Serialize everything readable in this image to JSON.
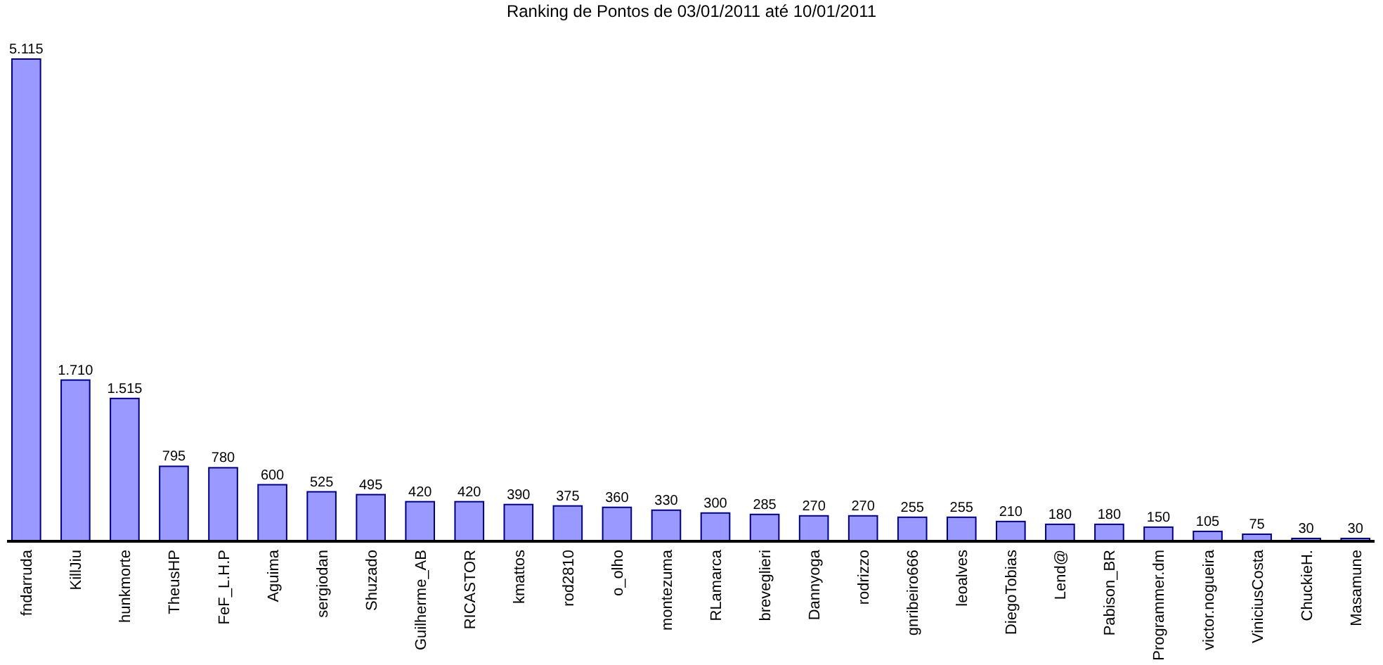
{
  "chart_data": {
    "type": "bar",
    "title": "Ranking de Pontos de 03/01/2011 até 10/01/2011",
    "categories": [
      "fndarruda",
      "KillJiu",
      "hunkmorte",
      "TheusHP",
      "FeF_L.H.P",
      "Aguima",
      "sergiodan",
      "Shuzado",
      "Guilherme_AB",
      "RICASTOR",
      "kmattos",
      "rod2810",
      "o_olho",
      "montezuma",
      "RLamarca",
      "breveglieri",
      "Dannyoga",
      "rodrizzo",
      "gnribeiro666",
      "leoalves",
      "DiegoTobias",
      "Lend@",
      "Pabison_BR",
      "Programmer.dm",
      "victor.nogueira",
      "ViniciusCosta",
      "ChuckieH.",
      "Masamune"
    ],
    "values": [
      5115,
      1710,
      1515,
      795,
      780,
      600,
      525,
      495,
      420,
      420,
      390,
      375,
      360,
      330,
      300,
      285,
      270,
      270,
      255,
      255,
      210,
      180,
      180,
      150,
      105,
      75,
      30,
      30
    ],
    "value_labels": [
      "5.115",
      "1.710",
      "1.515",
      "795",
      "780",
      "600",
      "525",
      "495",
      "420",
      "420",
      "390",
      "375",
      "360",
      "330",
      "300",
      "285",
      "270",
      "270",
      "255",
      "255",
      "210",
      "180",
      "180",
      "150",
      "105",
      "75",
      "30",
      "30"
    ],
    "color": "#9999ff",
    "ylim": [
      0,
      5115
    ],
    "tick_labels": "x"
  }
}
